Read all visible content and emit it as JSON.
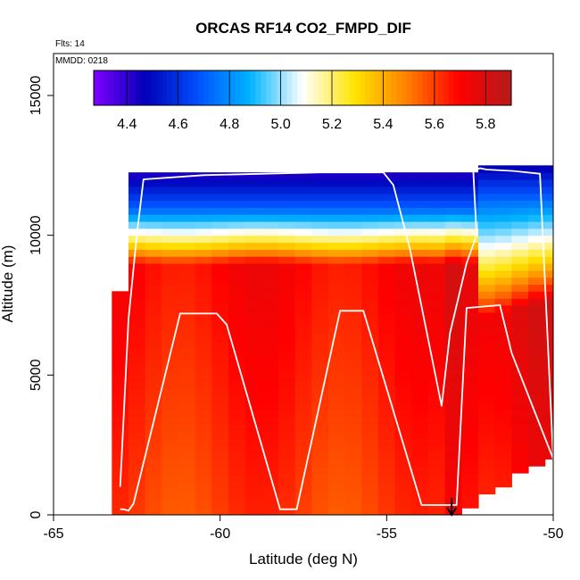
{
  "chart_data": {
    "type": "heatmap",
    "title": "ORCAS RF14 CO2_FMPD_DIF",
    "annotations": {
      "flights": "Flts: 14",
      "date": "MMDD: 0218"
    },
    "xlabel": "Latitude (deg N)",
    "ylabel": "Altitude (m)",
    "xlim": [
      -65,
      -50
    ],
    "ylim": [
      0,
      16500
    ],
    "x_ticks": [
      -65,
      -60,
      -55,
      -50
    ],
    "x_tick_labels": [
      "-65",
      "-60",
      "-55",
      "-50"
    ],
    "y_ticks": [
      0,
      5000,
      10000,
      15000
    ],
    "y_tick_labels": [
      "0",
      "5000",
      "10000",
      "15000"
    ],
    "colorbar": {
      "range": [
        4.27,
        5.9
      ],
      "ticks": [
        4.4,
        4.6,
        4.8,
        5.0,
        5.2,
        5.4,
        5.6,
        5.8
      ],
      "tick_labels": [
        "4.4",
        "4.6",
        "4.8",
        "5.0",
        "5.2",
        "5.4",
        "5.6",
        "5.8"
      ],
      "colors": [
        "#7f00ff",
        "#0000b8",
        "#0050ff",
        "#00b4ff",
        "#ffffff",
        "#ffe400",
        "#ff8000",
        "#ff0000",
        "#b41a1a"
      ]
    },
    "field_description": "Interpolated CO2 difference field: ~5.6-5.8 below 9000 m, sharp drop through 9000-11000 m to ~4.4 near 12000 m top",
    "lon_columns_lat": [
      -63.0,
      -62.5,
      -62.0,
      -61.5,
      -61.0,
      -60.5,
      -60.0,
      -59.5,
      -59.0,
      -58.5,
      -58.0,
      -57.5,
      -57.0,
      -56.5,
      -56.0,
      -55.5,
      -55.0,
      -54.5,
      -54.0,
      -53.5,
      -53.0,
      -52.5,
      -52.0,
      -51.5,
      -51.0,
      -50.5,
      -50.0
    ],
    "flight_track": {
      "name": "aircraft track",
      "color": "#ffffff",
      "lat": [
        -63.0,
        -62.9,
        -62.75,
        -62.6,
        -61.2,
        -60.1,
        -59.8,
        -58.2,
        -57.7,
        -56.4,
        -55.7,
        -53.95,
        -53.5,
        -52.9,
        -52.6,
        -51.6,
        -51.25,
        -50.0,
        -50.4,
        -51.2,
        -52.0,
        -52.2,
        -52.4,
        -52.3,
        -52.6,
        -53.1,
        -53.35,
        -54.3,
        -54.8,
        -55.1,
        -57.0,
        -60.5,
        -62.3,
        -62.5,
        -62.75,
        -63.0
      ],
      "alt": [
        200,
        200,
        150,
        400,
        7200,
        7200,
        6800,
        200,
        200,
        7300,
        7300,
        350,
        350,
        350,
        7400,
        7500,
        5800,
        2000,
        12200,
        12300,
        12350,
        12400,
        12300,
        10000,
        9000,
        6500,
        3900,
        9500,
        11800,
        12250,
        12250,
        12150,
        12000,
        10000,
        7000,
        1000
      ]
    },
    "marker": {
      "type": "arrow-down",
      "lat": -53.05,
      "alt_top": 600,
      "alt_bottom": 0
    }
  }
}
